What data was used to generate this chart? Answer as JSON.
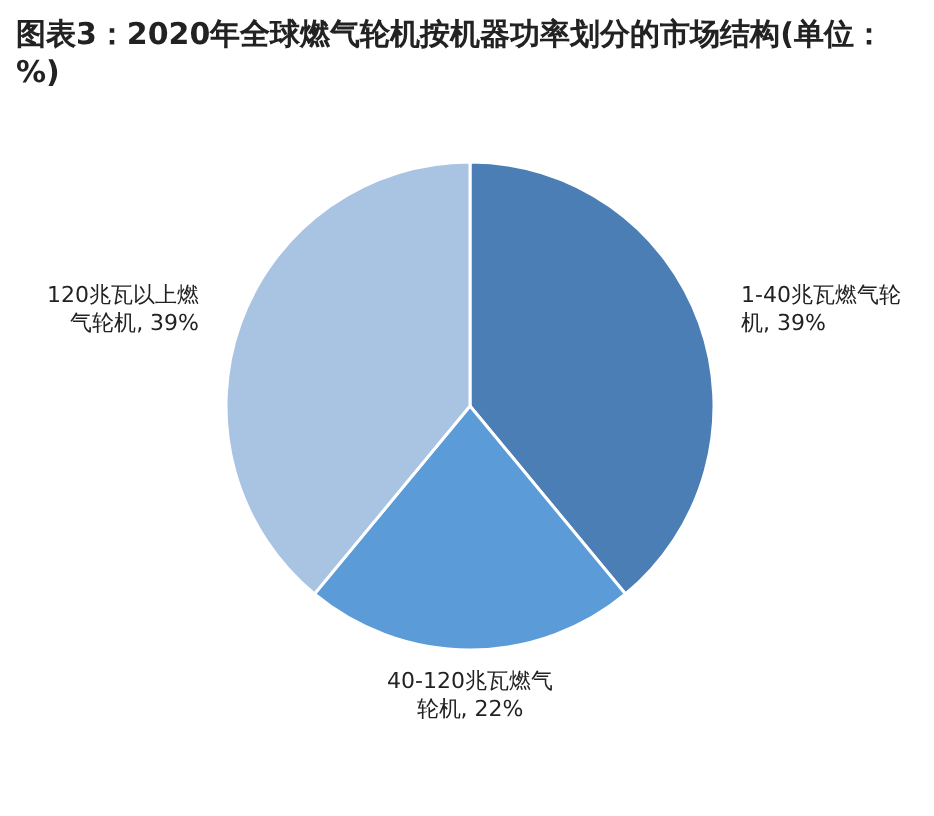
{
  "chart_data": {
    "type": "pie",
    "title": "图表3：2020年全球燃气轮机按机器功率划分的市场结构(单位：%)",
    "categories": [
      "1-40兆瓦燃气轮机",
      "40-120兆瓦燃气轮机",
      "120兆瓦以上燃气轮机"
    ],
    "values": [
      39,
      22,
      39
    ],
    "colors": [
      "#4a7eb5",
      "#5b9bd8",
      "#a9c3e3"
    ],
    "value_labels": [
      ", 39%",
      ", 22%",
      ", 39%"
    ]
  }
}
